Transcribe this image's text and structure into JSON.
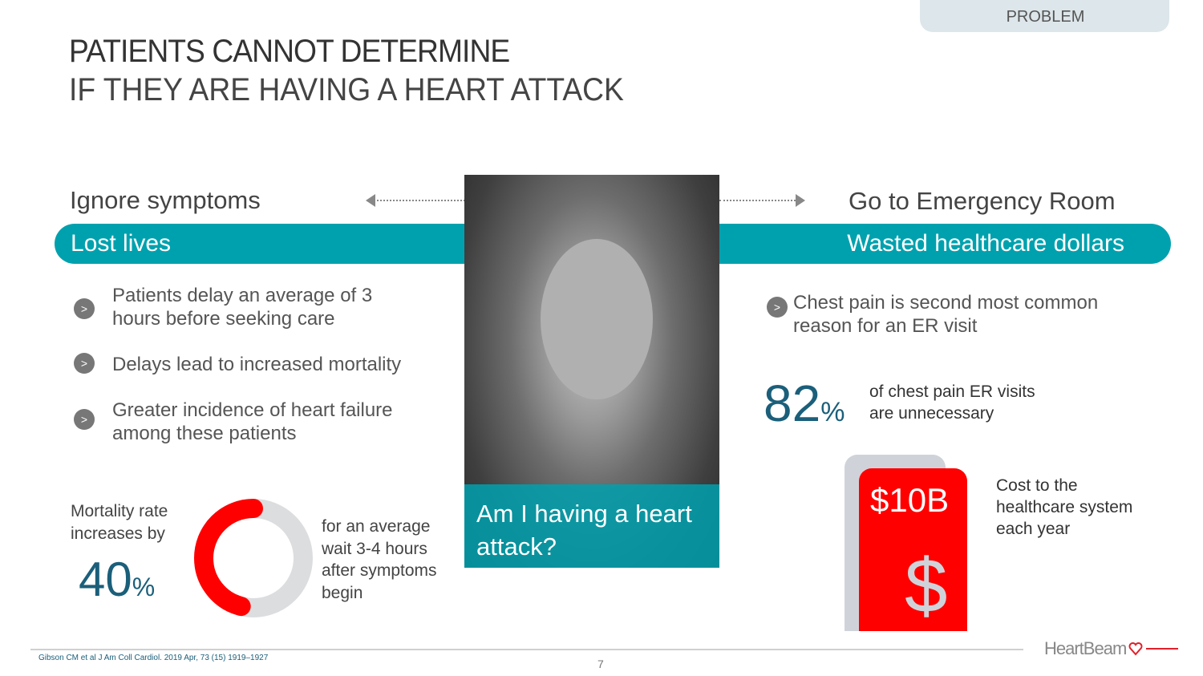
{
  "section_tag": "PROBLEM",
  "title": {
    "line1": "PATIENTS CANNOT DETERMINE",
    "line2": "IF THEY ARE HAVING A HEART ATTACK"
  },
  "left": {
    "heading": "Ignore symptoms",
    "band": "Lost lives",
    "bullets": [
      "Patients delay an average of 3 hours before seeking care",
      "Delays lead to increased mortality",
      "Greater incidence of heart failure among these patients"
    ],
    "mortality_label": "Mortality rate increases by",
    "mortality_value": "40",
    "percent_sign": "%",
    "donut_percent": 40,
    "donut_text": "for an average wait 3-4 hours after symptoms begin"
  },
  "center": {
    "caption": "Am I having a heart attack?"
  },
  "right": {
    "heading": "Go to Emergency Room",
    "band": "Wasted healthcare dollars",
    "bullet": "Chest pain is second most common reason for an ER visit",
    "stat_value": "82",
    "percent_sign": "%",
    "stat_text": "of chest pain ER visits are unnecessary",
    "cost_value": "$10B",
    "cost_icon": "$",
    "cost_text": "Cost to the healthcare system each year"
  },
  "footer": {
    "citation": "Gibson CM et al J Am Coll Cardiol. 2019 Apr, 73 (15) 1919–1927",
    "page": "7",
    "logo": "HeartBeam"
  },
  "colors": {
    "teal": "#00a1ae",
    "red": "#ff0000",
    "navy": "#1b5f7a"
  }
}
